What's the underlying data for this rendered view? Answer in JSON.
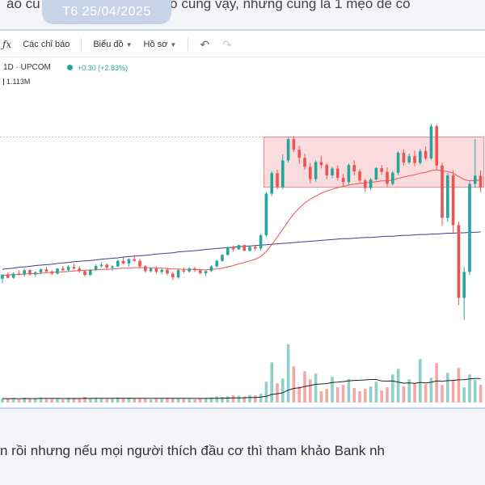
{
  "post": {
    "top_text": "ảo cũ                                ảo cũng vậy, nhưng cũng là 1 mẹo để cổ",
    "date_badge": "T6 25/04/2025",
    "bottom_text": "n rồi nhưng nếu mọi người thích đầu cơ thì tham khảo Bank nh"
  },
  "toolbar": {
    "fx_icon": "fx-icon",
    "indicators_label": "Các chỉ báo",
    "chart_label": "Biểu đồ",
    "profile_label": "Hồ sơ",
    "undo_icon": "undo-icon",
    "redo_icon": "redo-icon"
  },
  "symbol": {
    "info": "1D · UPCOM",
    "change": "+0.30 (+2.83%)",
    "volume": "1.113M"
  },
  "colors": {
    "up": "#26a69a",
    "down": "#ef5350",
    "up_volume": "#8fd1c6",
    "down_volume": "#f4a7a6",
    "ma_short": "#ef5350",
    "ma_long": "#3f3f8f",
    "box_fill": "#f9d3d7",
    "box_stroke": "#e58a93"
  },
  "chart_data": {
    "type": "candlestick",
    "x_axis": "trading days",
    "candles": [
      [
        60,
        61,
        59,
        61
      ],
      [
        61,
        61.5,
        60,
        60.2
      ],
      [
        60.2,
        61.5,
        60,
        61.2
      ],
      [
        61.2,
        62,
        60.8,
        61
      ],
      [
        61,
        62.4,
        60.5,
        62
      ],
      [
        62,
        62.3,
        60.8,
        61
      ],
      [
        61,
        61.8,
        60.5,
        61.5
      ],
      [
        61.5,
        62.4,
        61,
        62.2
      ],
      [
        62.2,
        62.8,
        61.4,
        61.7
      ],
      [
        61.7,
        62,
        60.9,
        61.2
      ],
      [
        61.2,
        62.5,
        61,
        62.4
      ],
      [
        62.4,
        63,
        61.8,
        62
      ],
      [
        62,
        63.2,
        61.7,
        62.8
      ],
      [
        62.8,
        63.5,
        62.2,
        62.4
      ],
      [
        62.4,
        63,
        61.4,
        61.8
      ],
      [
        61.8,
        62,
        60.5,
        60.9
      ],
      [
        60.9,
        62.3,
        60.6,
        62.1
      ],
      [
        62.1,
        63.4,
        61.9,
        63
      ],
      [
        63,
        63.8,
        62.6,
        63.3
      ],
      [
        63.3,
        63.6,
        62.2,
        62.6
      ],
      [
        62.6,
        63.2,
        61.8,
        62.9
      ],
      [
        62.9,
        64.5,
        62.7,
        64.2
      ],
      [
        64.2,
        65,
        63.4,
        63.6
      ],
      [
        63.6,
        64.8,
        62.8,
        64.6
      ],
      [
        64.6,
        65.6,
        64,
        64.2
      ],
      [
        64.2,
        64.7,
        62.4,
        62.9
      ],
      [
        62.9,
        63.2,
        61.4,
        61.8
      ],
      [
        61.8,
        62.7,
        61.5,
        62.4
      ],
      [
        62.4,
        62.9,
        61.2,
        61.6
      ],
      [
        61.6,
        62.4,
        61,
        62.1
      ],
      [
        62.1,
        62.6,
        60.8,
        61.2
      ],
      [
        61.2,
        61.6,
        59.6,
        60.3
      ],
      [
        60.3,
        62.3,
        60,
        62
      ],
      [
        62,
        62.6,
        61.4,
        61.7
      ],
      [
        61.7,
        62.7,
        61.4,
        62.4
      ],
      [
        62.4,
        62.8,
        61.6,
        62
      ],
      [
        62,
        62.2,
        61,
        61.3
      ],
      [
        61.3,
        62,
        60.6,
        61.8
      ],
      [
        61.8,
        63.2,
        61.6,
        62.9
      ],
      [
        62.9,
        64.4,
        62.6,
        64.2
      ],
      [
        64.2,
        65.8,
        64,
        65.6
      ],
      [
        65.6,
        67.6,
        65.4,
        67.4
      ],
      [
        67.4,
        67.8,
        66.4,
        66.9
      ],
      [
        66.9,
        68,
        66.8,
        67.9
      ],
      [
        67.9,
        68,
        66.4,
        66.6
      ],
      [
        66.6,
        67.8,
        66.4,
        67.5
      ],
      [
        67.5,
        67.8,
        66.6,
        67.1
      ],
      [
        67.1,
        70.5,
        66.6,
        70.2
      ],
      [
        70.2,
        80.4,
        69.8,
        80
      ],
      [
        80,
        85.3,
        79.4,
        84.8
      ],
      [
        84.8,
        85.6,
        81,
        81.5
      ],
      [
        81.5,
        89.2,
        81,
        87.8
      ],
      [
        87.8,
        93.3,
        87.3,
        92.8
      ],
      [
        92.8,
        93.5,
        89.8,
        90.3
      ],
      [
        90.3,
        91.2,
        87,
        88.4
      ],
      [
        88.4,
        89.4,
        85.6,
        86.3
      ],
      [
        86.3,
        87.2,
        82.4,
        83.4
      ],
      [
        83.4,
        87.8,
        82.8,
        87.4
      ],
      [
        87.4,
        88.9,
        85.9,
        86.7
      ],
      [
        86.7,
        87.1,
        83.4,
        84.3
      ],
      [
        84.3,
        86.3,
        83.6,
        85.9
      ],
      [
        85.9,
        86.6,
        83,
        83.7
      ],
      [
        83.7,
        84.6,
        81.8,
        82.7
      ],
      [
        82.7,
        87.1,
        82.1,
        86.7
      ],
      [
        86.7,
        87.8,
        84.3,
        85.2
      ],
      [
        85.2,
        85.8,
        82.6,
        83.1
      ],
      [
        83.1,
        83.4,
        80.4,
        81.3
      ],
      [
        81.3,
        83.7,
        80.8,
        83.3
      ],
      [
        83.3,
        86.2,
        83.1,
        86
      ],
      [
        86,
        86.7,
        84.4,
        85.1
      ],
      [
        85.1,
        86.2,
        81.6,
        82.3
      ],
      [
        82.3,
        85.3,
        81.9,
        84.9
      ],
      [
        84.9,
        90,
        84.3,
        89.6
      ],
      [
        89.6,
        90.4,
        86.6,
        87.3
      ],
      [
        87.3,
        89.4,
        86.9,
        88.8
      ],
      [
        88.8,
        90.1,
        86.4,
        87.2
      ],
      [
        87.2,
        90.5,
        86.8,
        90
      ],
      [
        90,
        91.1,
        87.9,
        88.3
      ],
      [
        88.3,
        96.3,
        87.9,
        95.8
      ],
      [
        95.8,
        96.3,
        85.6,
        86.6
      ],
      [
        86.6,
        87.2,
        72.4,
        74.3
      ],
      [
        74.3,
        84.8,
        73.4,
        84.3
      ],
      [
        84.3,
        85.5,
        70.8,
        72.6
      ],
      [
        72.6,
        73.4,
        53.8,
        55.5
      ],
      [
        55.5,
        62.8,
        50.3,
        61.6
      ],
      [
        61.6,
        82.8,
        60.8,
        82.3
      ],
      [
        82.3,
        92.8,
        81.4,
        84.2
      ],
      [
        84.2,
        85.4,
        80.3,
        81.5
      ]
    ],
    "volume": [
      10,
      9,
      11,
      8,
      12,
      9,
      10,
      13,
      11,
      9,
      10,
      8,
      12,
      11,
      9,
      14,
      10,
      12,
      11,
      9,
      10,
      13,
      11,
      12,
      10,
      9,
      11,
      8,
      10,
      9,
      12,
      10,
      11,
      9,
      10,
      8,
      11,
      12,
      13,
      15,
      14,
      16,
      18,
      17,
      15,
      19,
      18,
      22,
      52,
      100,
      48,
      60,
      145,
      90,
      40,
      78,
      58,
      72,
      28,
      34,
      64,
      38,
      44,
      58,
      36,
      28,
      34,
      40,
      52,
      30,
      38,
      70,
      84,
      40,
      58,
      48,
      108,
      46,
      62,
      98,
      44,
      74,
      56,
      86,
      38,
      70,
      56,
      44
    ],
    "series": [
      {
        "name": "",
        "values": [
          62.2,
          62.4,
          62.5,
          62.7,
          62.8,
          62.9,
          63.1,
          63.2,
          63.3,
          63.4,
          63.6,
          63.7,
          63.8,
          64,
          64.1,
          64.2,
          64.3,
          64.4,
          64.6,
          64.7,
          64.8,
          64.9,
          65.1,
          65.2,
          65.3,
          65.4,
          65.5,
          65.6,
          65.8,
          65.9,
          66,
          66.1,
          66.3,
          66.4,
          66.5,
          66.6,
          66.7,
          66.9,
          67,
          67.1,
          67.2,
          67.3,
          67.4,
          67.5,
          67.6,
          67.7,
          67.8,
          67.9,
          68,
          68.1,
          68.2,
          68.3,
          68.4,
          68.5,
          68.6,
          68.7,
          68.8,
          68.9,
          69,
          69.1,
          69.2,
          69.3,
          69.4,
          69.4,
          69.5,
          69.6,
          69.7,
          69.7,
          69.8,
          69.9,
          70,
          70,
          70.1,
          70.2,
          70.2,
          70.3,
          70.4,
          70.4,
          70.5,
          70.5,
          70.6,
          70.7,
          70.7,
          70.8,
          70.8,
          70.9,
          70.9,
          71
        ]
      },
      {
        "name": "",
        "values": [
          60.8,
          60.9,
          61,
          61,
          61.1,
          61.2,
          61.2,
          61.3,
          61.4,
          61.5,
          61.6,
          61.6,
          61.7,
          61.8,
          61.9,
          62,
          62,
          62.1,
          62.2,
          62.2,
          62.3,
          62.4,
          62.5,
          62.5,
          62.6,
          62.6,
          62.6,
          62.6,
          62.5,
          62.5,
          62.4,
          62.3,
          62.3,
          62.2,
          62.2,
          62.2,
          62.1,
          62.1,
          62.2,
          62.3,
          62.5,
          62.8,
          63.1,
          63.5,
          63.8,
          64.2,
          64.6,
          65.2,
          66.4,
          68,
          69.8,
          71.6,
          73.5,
          75.2,
          76.6,
          77.8,
          78.7,
          79.4,
          80.1,
          80.6,
          81,
          81.4,
          81.7,
          82,
          82.2,
          82.4,
          82.5,
          82.6,
          82.8,
          83,
          83,
          83.2,
          83.6,
          83.9,
          84.2,
          84.4,
          84.8,
          85,
          85.4,
          85.6,
          85.3,
          85.2,
          84.8,
          84,
          83.3,
          83,
          83.1,
          83.2
        ]
      }
    ],
    "consolidation_box": {
      "start_index": 48,
      "end_index": 87,
      "low": 81.5,
      "high": 93.3
    }
  }
}
